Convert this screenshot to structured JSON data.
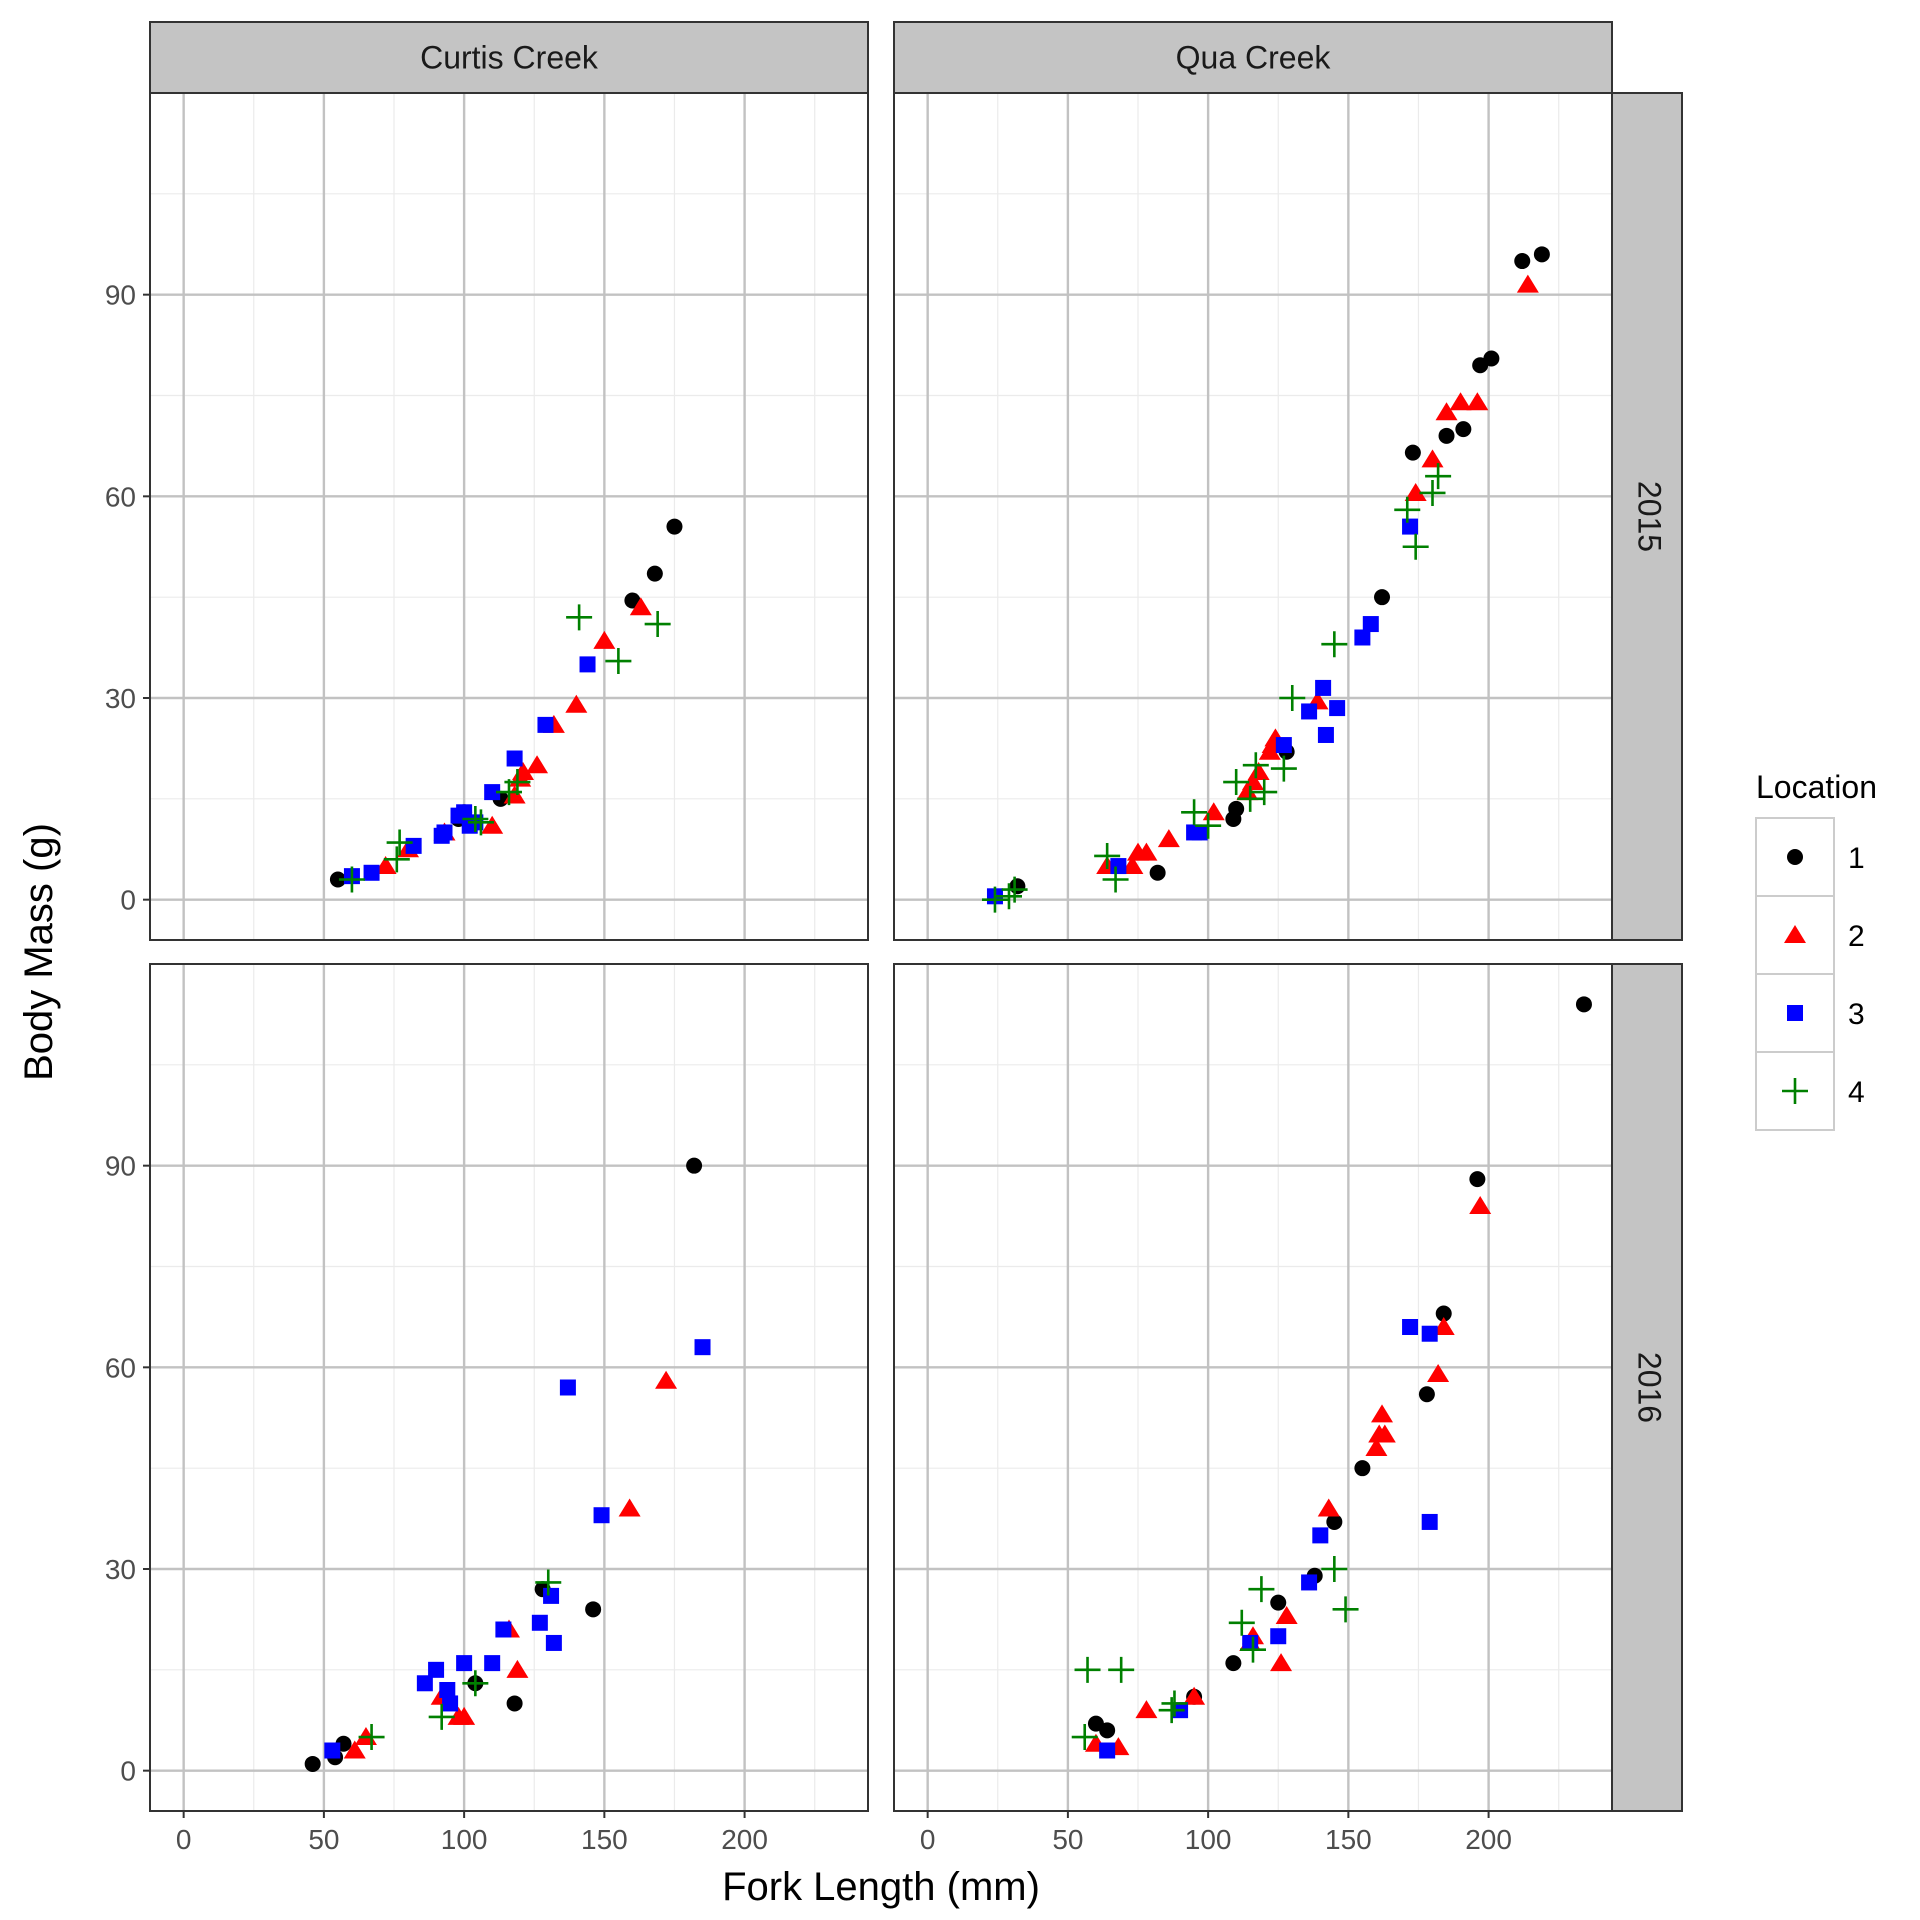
{
  "chart_data": {
    "type": "scatter",
    "xlabel": "Fork Length (mm)",
    "ylabel": "Body Mass (g)",
    "xlim": [
      -12,
      244
    ],
    "ylim": [
      -6,
      120
    ],
    "x_ticks": [
      "0",
      "50",
      "100",
      "150",
      "200"
    ],
    "x_tick_values": [
      0,
      50,
      100,
      150,
      200
    ],
    "y_ticks": [
      "0",
      "30",
      "60",
      "90"
    ],
    "y_tick_values": [
      0,
      30,
      60,
      90
    ],
    "grid": true,
    "facet_columns": [
      "Curtis Creek",
      "Qua Creek"
    ],
    "facet_rows": [
      "2015",
      "2016"
    ],
    "legend": {
      "title": "Location",
      "position": "right",
      "entries": [
        {
          "label": "1",
          "shape": "circle",
          "color": "#000000"
        },
        {
          "label": "2",
          "shape": "triangle",
          "color": "#ff0000"
        },
        {
          "label": "3",
          "shape": "square",
          "color": "#0000ff"
        },
        {
          "label": "4",
          "shape": "plus",
          "color": "#008000"
        }
      ]
    },
    "panels": [
      {
        "column": "Curtis Creek",
        "row": "2015",
        "series": [
          {
            "name": "1",
            "points": [
              [
                55,
                3
              ],
              [
                98,
                12
              ],
              [
                100,
                13
              ],
              [
                113,
                15
              ],
              [
                160,
                44.5
              ],
              [
                168,
                48.5
              ],
              [
                175,
                55.5
              ]
            ]
          },
          {
            "name": "2",
            "points": [
              [
                72,
                5
              ],
              [
                80,
                7.5
              ],
              [
                93,
                10
              ],
              [
                110,
                11
              ],
              [
                118,
                15.5
              ],
              [
                120,
                18
              ],
              [
                121,
                19
              ],
              [
                126,
                20
              ],
              [
                132,
                26
              ],
              [
                140,
                29
              ],
              [
                150,
                38.5
              ],
              [
                163,
                43.5
              ]
            ]
          },
          {
            "name": "3",
            "points": [
              [
                60,
                3.5
              ],
              [
                67,
                4
              ],
              [
                82,
                8
              ],
              [
                92,
                9.5
              ],
              [
                93,
                10
              ],
              [
                98,
                12.5
              ],
              [
                100,
                13
              ],
              [
                102,
                11
              ],
              [
                104,
                11.5
              ],
              [
                110,
                16
              ],
              [
                118,
                21
              ],
              [
                129,
                26
              ],
              [
                144,
                35
              ]
            ]
          },
          {
            "name": "4",
            "points": [
              [
                60,
                3
              ],
              [
                76,
                6
              ],
              [
                77,
                8.5
              ],
              [
                104,
                12
              ],
              [
                106,
                11.5
              ],
              [
                116,
                16
              ],
              [
                119,
                17.5
              ],
              [
                141,
                42
              ],
              [
                155,
                35.5
              ],
              [
                169,
                41
              ]
            ]
          }
        ]
      },
      {
        "column": "Qua Creek",
        "row": "2015",
        "series": [
          {
            "name": "1",
            "points": [
              [
                32,
                2
              ],
              [
                82,
                4
              ],
              [
                109,
                12
              ],
              [
                110,
                13.5
              ],
              [
                128,
                22
              ],
              [
                162,
                45
              ],
              [
                173,
                66.5
              ],
              [
                185,
                69
              ],
              [
                191,
                70
              ],
              [
                197,
                79.5
              ],
              [
                201,
                80.5
              ],
              [
                212,
                95
              ],
              [
                219,
                96
              ]
            ]
          },
          {
            "name": "2",
            "points": [
              [
                64,
                5
              ],
              [
                73,
                5
              ],
              [
                75,
                7
              ],
              [
                78,
                7
              ],
              [
                86,
                9
              ],
              [
                102,
                13
              ],
              [
                114,
                16
              ],
              [
                116,
                17.5
              ],
              [
                118,
                19
              ],
              [
                122,
                22
              ],
              [
                123,
                23
              ],
              [
                124,
                24
              ],
              [
                139,
                29.5
              ],
              [
                174,
                60.5
              ],
              [
                180,
                65.5
              ],
              [
                185,
                72.5
              ],
              [
                190,
                74
              ],
              [
                196,
                74
              ],
              [
                214,
                91.5
              ]
            ]
          },
          {
            "name": "3",
            "points": [
              [
                24,
                0.5
              ],
              [
                68,
                5
              ],
              [
                95,
                10
              ],
              [
                97,
                10
              ],
              [
                127,
                23
              ],
              [
                136,
                28
              ],
              [
                141,
                31.5
              ],
              [
                142,
                24.5
              ],
              [
                146,
                28.5
              ],
              [
                155,
                39
              ],
              [
                158,
                41
              ],
              [
                172,
                55.5
              ]
            ]
          },
          {
            "name": "4",
            "points": [
              [
                24,
                0
              ],
              [
                29,
                0.5
              ],
              [
                31,
                1.5
              ],
              [
                64,
                6.5
              ],
              [
                67,
                3
              ],
              [
                95,
                13
              ],
              [
                100,
                11
              ],
              [
                110,
                17.5
              ],
              [
                115,
                15
              ],
              [
                117,
                20
              ],
              [
                120,
                16
              ],
              [
                127,
                19.5
              ],
              [
                130,
                30
              ],
              [
                145,
                38
              ],
              [
                171,
                58
              ],
              [
                174,
                52.5
              ],
              [
                180,
                60.5
              ],
              [
                182,
                63
              ]
            ]
          }
        ]
      },
      {
        "column": "Curtis Creek",
        "row": "2016",
        "series": [
          {
            "name": "1",
            "points": [
              [
                46,
                1
              ],
              [
                54,
                2
              ],
              [
                57,
                4
              ],
              [
                104,
                13
              ],
              [
                118,
                10
              ],
              [
                128,
                27
              ],
              [
                146,
                24
              ],
              [
                182,
                90
              ]
            ]
          },
          {
            "name": "2",
            "points": [
              [
                61,
                3
              ],
              [
                65,
                5
              ],
              [
                92,
                11
              ],
              [
                98,
                8
              ],
              [
                100,
                8
              ],
              [
                116,
                21
              ],
              [
                119,
                15
              ],
              [
                159,
                39
              ],
              [
                172,
                58
              ]
            ]
          },
          {
            "name": "3",
            "points": [
              [
                53,
                3
              ],
              [
                86,
                13
              ],
              [
                90,
                15
              ],
              [
                94,
                12
              ],
              [
                95,
                10
              ],
              [
                100,
                16
              ],
              [
                110,
                16
              ],
              [
                114,
                21
              ],
              [
                127,
                22
              ],
              [
                131,
                26
              ],
              [
                132,
                19
              ],
              [
                137,
                57
              ],
              [
                149,
                38
              ],
              [
                185,
                63
              ]
            ]
          },
          {
            "name": "4",
            "points": [
              [
                67,
                5
              ],
              [
                92,
                8
              ],
              [
                104,
                13
              ],
              [
                130,
                28
              ]
            ]
          }
        ]
      },
      {
        "column": "Qua Creek",
        "row": "2016",
        "series": [
          {
            "name": "1",
            "points": [
              [
                60,
                7
              ],
              [
                64,
                6
              ],
              [
                95,
                11
              ],
              [
                109,
                16
              ],
              [
                125,
                25
              ],
              [
                138,
                29
              ],
              [
                145,
                37
              ],
              [
                155,
                45
              ],
              [
                178,
                56
              ],
              [
                184,
                68
              ],
              [
                196,
                88
              ],
              [
                234,
                114
              ]
            ]
          },
          {
            "name": "2",
            "points": [
              [
                60,
                4
              ],
              [
                68,
                3.5
              ],
              [
                78,
                9
              ],
              [
                95,
                11
              ],
              [
                115,
                19
              ],
              [
                116,
                20
              ],
              [
                126,
                16
              ],
              [
                128,
                23
              ],
              [
                143,
                39
              ],
              [
                160,
                48
              ],
              [
                161,
                50
              ],
              [
                162,
                53
              ],
              [
                163,
                50
              ],
              [
                182,
                59
              ],
              [
                184,
                66
              ],
              [
                197,
                84
              ]
            ]
          },
          {
            "name": "3",
            "points": [
              [
                64,
                3
              ],
              [
                90,
                9
              ],
              [
                115,
                19
              ],
              [
                125,
                20
              ],
              [
                136,
                28
              ],
              [
                140,
                35
              ],
              [
                172,
                66
              ],
              [
                179,
                37
              ],
              [
                179,
                65
              ]
            ]
          },
          {
            "name": "4",
            "points": [
              [
                56,
                5
              ],
              [
                57,
                15
              ],
              [
                69,
                15
              ],
              [
                87,
                9
              ],
              [
                88,
                10
              ],
              [
                112,
                22
              ],
              [
                116,
                18
              ],
              [
                119,
                27
              ],
              [
                145,
                30
              ],
              [
                149,
                24
              ]
            ]
          }
        ]
      }
    ]
  }
}
